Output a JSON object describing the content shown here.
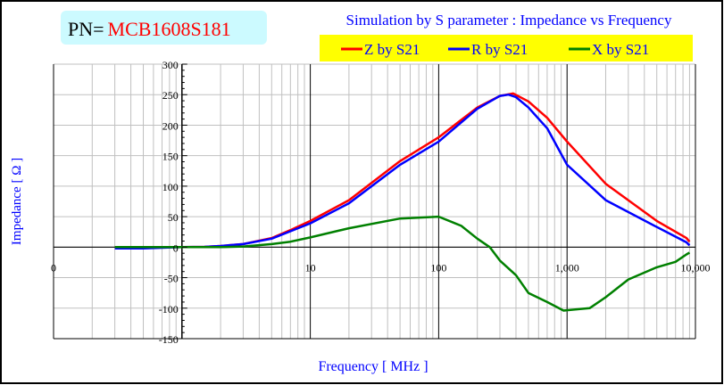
{
  "part_number": {
    "prefix": "PN=",
    "value": "MCB1608S181"
  },
  "colors": {
    "title": "#0000ff",
    "legend_bg": "#ffff00",
    "pn_bg": "#ccfaff",
    "pn_value": "#ff0000",
    "grid": "#c0c0c0"
  },
  "chart_data": {
    "type": "line",
    "title": "Simulation by S parameter : Impedance vs Frequency",
    "xlabel": "Frequency [ MHz ]",
    "ylabel": "Impedance [ Ω ]",
    "x_scale": "log",
    "xlim": [
      0.1,
      10000
    ],
    "ylim": [
      -150,
      300
    ],
    "grid": true,
    "legend_placement": "top-right",
    "x_ticks": [
      {
        "value": 0.1,
        "label": "0"
      },
      {
        "value": 10,
        "label": "10"
      },
      {
        "value": 100,
        "label": "100"
      },
      {
        "value": 1000,
        "label": "1,000"
      },
      {
        "value": 10000,
        "label": "10,000"
      }
    ],
    "y_ticks": [
      300,
      250,
      200,
      150,
      100,
      50,
      0,
      -50,
      -100,
      -150
    ],
    "series": [
      {
        "name": "Z by S21",
        "color": "#ff0000",
        "x": [
          0.3,
          0.5,
          1,
          1.5,
          2,
          3,
          5,
          7,
          10,
          20,
          50,
          100,
          200,
          300,
          380,
          500,
          700,
          1000,
          2000,
          5000,
          8500,
          9000
        ],
        "y": [
          0,
          0,
          0,
          0.5,
          2,
          5,
          15,
          28,
          43,
          77,
          141,
          180,
          229,
          248,
          252,
          239,
          212,
          173,
          104,
          43,
          15,
          9
        ]
      },
      {
        "name": "R by S21",
        "color": "#0000ff",
        "x": [
          0.3,
          0.5,
          0.7,
          1,
          1.5,
          2,
          3,
          5,
          7,
          10,
          20,
          50,
          100,
          200,
          300,
          350,
          400,
          500,
          700,
          1000,
          2000,
          5000,
          8500,
          9000
        ],
        "y": [
          -2,
          -2,
          -1,
          0,
          0.5,
          2,
          5,
          14,
          26,
          39,
          72,
          135,
          173,
          227,
          248,
          250,
          246,
          229,
          195,
          135,
          77,
          33,
          8,
          3
        ]
      },
      {
        "name": "X by S21",
        "color": "#008000",
        "x": [
          0.3,
          1,
          2,
          3,
          5,
          7,
          10,
          20,
          50,
          100,
          150,
          200,
          250,
          300,
          400,
          500,
          700,
          940,
          1500,
          2000,
          3000,
          5000,
          7000,
          8500,
          9000
        ],
        "y": [
          0,
          0,
          0,
          1,
          5,
          9,
          16,
          31,
          47,
          50,
          35,
          14,
          0,
          -22,
          -46,
          -75,
          -90,
          -104,
          -100,
          -82,
          -53,
          -33,
          -24,
          -12,
          -9
        ]
      }
    ]
  }
}
